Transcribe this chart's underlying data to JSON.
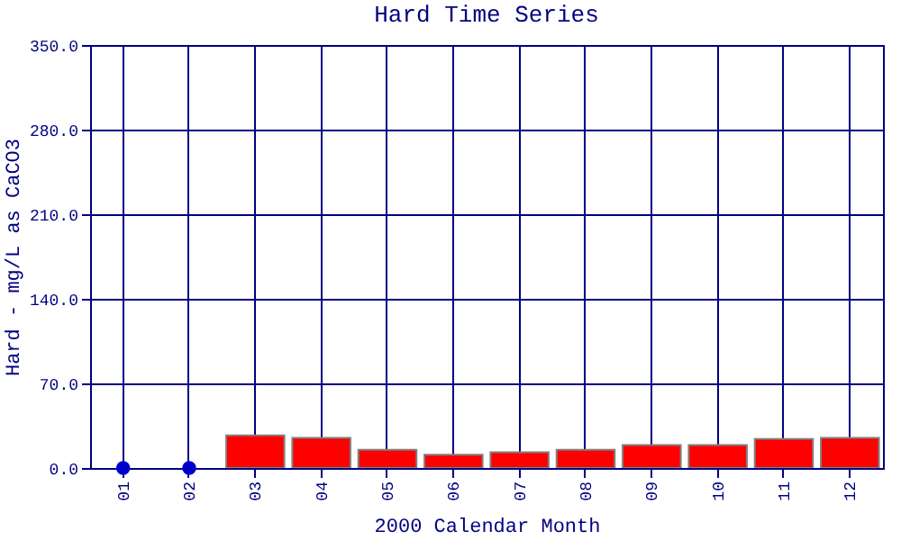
{
  "chart_data": {
    "type": "bar",
    "title": "Hard Time Series",
    "xlabel": "2000 Calendar Month",
    "ylabel": "Hard - mg/L as CaCO3",
    "categories": [
      "01",
      "02",
      "03",
      "04",
      "05",
      "06",
      "07",
      "08",
      "09",
      "10",
      "11",
      "12"
    ],
    "series": [
      {
        "color": "#ff0000",
        "values": [
          null,
          null,
          27,
          25,
          15,
          11,
          13,
          15,
          19,
          19,
          24,
          25
        ]
      },
      {
        "type": "scatter",
        "color": "#0000cc",
        "x": [
          "01",
          "02"
        ],
        "values": [
          0,
          0
        ]
      }
    ],
    "ylim": [
      0,
      350
    ],
    "yticks": [
      {
        "value": 0,
        "label": "0.0"
      },
      {
        "value": 70,
        "label": "70.0"
      },
      {
        "value": 140,
        "label": "140.0"
      },
      {
        "value": 210,
        "label": "210.0"
      },
      {
        "value": 280,
        "label": "280.0"
      },
      {
        "value": 350,
        "label": "350.0"
      }
    ],
    "grid": true,
    "marker": "circle"
  }
}
